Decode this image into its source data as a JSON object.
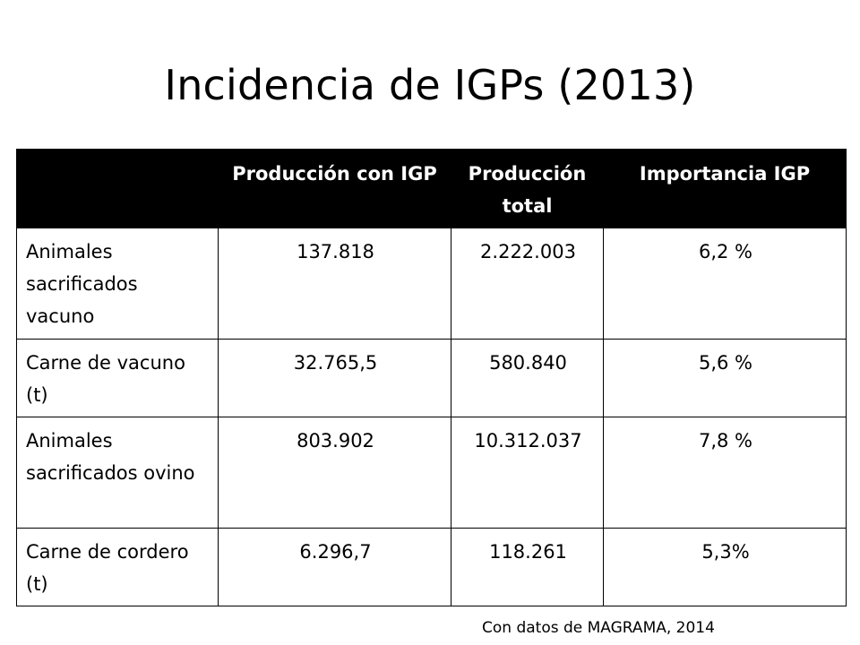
{
  "slide": {
    "title": "Incidencia de IGPs (2013)",
    "source_note": "Con datos de MAGRAMA, 2014"
  },
  "table": {
    "headers": [
      "",
      "Producción con IGP",
      "Producción total",
      "Importancia IGP"
    ],
    "rows": [
      {
        "label": "Animales sacrificados vacuno",
        "igp": "137.818",
        "total": "2.222.003",
        "importancia": "6,2 %"
      },
      {
        "label": "Carne de vacuno (t)",
        "igp": "32.765,5",
        "total": "580.840",
        "importancia": "5,6 %"
      },
      {
        "label": "Animales sacrificados ovino",
        "igp": "803.902",
        "total": "10.312.037",
        "importancia": "7,8 %"
      },
      {
        "label": "Carne de cordero (t)",
        "igp": "6.296,7",
        "total": "118.261",
        "importancia": "5,3%"
      }
    ]
  },
  "colors": {
    "header_background": "#000000",
    "header_text": "#ffffff",
    "border": "#000000",
    "background": "#ffffff"
  }
}
